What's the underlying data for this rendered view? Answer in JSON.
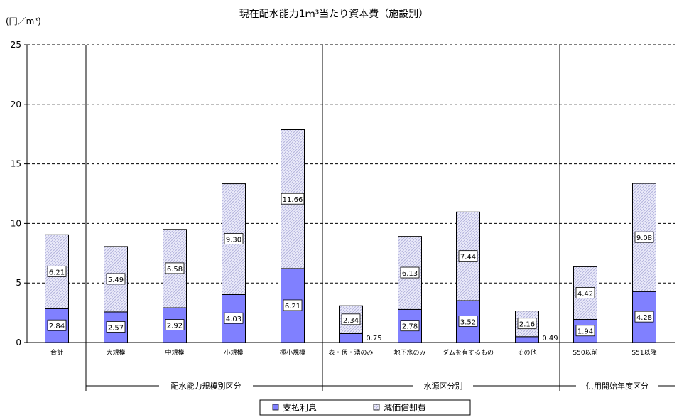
{
  "chart_data": {
    "type": "bar",
    "stacked": true,
    "title": "現在配水能力1ｍ³当たり資本費（施設別）",
    "unit": "(円／m³)",
    "ylim": [
      0,
      25
    ],
    "yticks": [
      "0",
      "5",
      "10",
      "15",
      "20",
      "25"
    ],
    "grid": "dashed horizontal",
    "legend_position": "bottom",
    "categories": [
      "合計",
      "大規模",
      "中規模",
      "小規模",
      "極小規模",
      "表・伏・湧のみ",
      "地下水のみ",
      "ダムを有するもの",
      "その他",
      "S50以前",
      "S51以降"
    ],
    "series": [
      {
        "name": "支払利息",
        "color": "#8080ff",
        "values": [
          2.84,
          2.57,
          2.92,
          4.03,
          6.21,
          0.75,
          2.78,
          3.52,
          0.49,
          1.94,
          4.28
        ],
        "labels": [
          "2.84",
          "2.57",
          "2.92",
          "4.03",
          "6.21",
          "0.75",
          "2.78",
          "3.52",
          "0.49",
          "1.94",
          "4.28"
        ]
      },
      {
        "name": "減価償却費",
        "color": "#e6e6f8",
        "values": [
          6.21,
          5.49,
          6.58,
          9.3,
          11.66,
          2.34,
          6.13,
          7.44,
          2.16,
          4.42,
          9.08
        ],
        "labels": [
          "6.21",
          "5.49",
          "6.58",
          "9.30",
          "11.66",
          "2.34",
          "6.13",
          "7.44",
          "2.16",
          "4.42",
          "9.08"
        ]
      }
    ],
    "groups": [
      {
        "label": "配水能力規模別区分",
        "categories": [
          "大規模",
          "中規模",
          "小規模",
          "極小規模"
        ]
      },
      {
        "label": "水源区分別",
        "categories": [
          "表・伏・湧のみ",
          "地下水のみ",
          "ダムを有するもの",
          "その他"
        ]
      },
      {
        "label": "供用開始年度区分",
        "categories": [
          "S50以前",
          "S51以降"
        ]
      }
    ]
  }
}
